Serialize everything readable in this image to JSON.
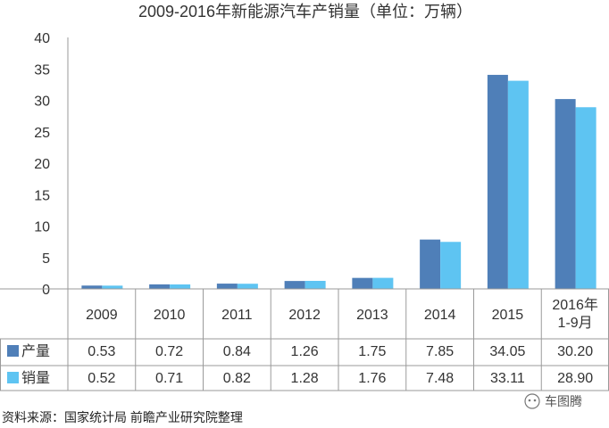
{
  "chart_data": {
    "type": "bar",
    "title": "2009-2016年新能源汽车产销量（单位：万辆）",
    "categories": [
      "2009",
      "2010",
      "2011",
      "2012",
      "2013",
      "2014",
      "2015",
      "2016年\n1-9月"
    ],
    "series": [
      {
        "name": "产量",
        "color": "#4f7fb8",
        "values": [
          0.53,
          0.72,
          0.84,
          1.26,
          1.75,
          7.85,
          34.05,
          30.2
        ],
        "labels": [
          "0.53",
          "0.72",
          "0.84",
          "1.26",
          "1.75",
          "7.85",
          "34.05",
          "30.20"
        ]
      },
      {
        "name": "销量",
        "color": "#5ec4f2",
        "values": [
          0.52,
          0.71,
          0.82,
          1.28,
          1.76,
          7.48,
          33.11,
          28.9
        ],
        "labels": [
          "0.52",
          "0.71",
          "0.82",
          "1.28",
          "1.76",
          "7.48",
          "33.11",
          "28.90"
        ]
      }
    ],
    "ylim": [
      0,
      40
    ],
    "yticks": [
      0,
      5,
      10,
      15,
      20,
      25,
      30,
      35,
      40
    ],
    "xlabel": "",
    "ylabel": "",
    "grid": false,
    "legend": "data-table-left"
  },
  "source": "资料来源：国家统计局 前瞻产业研究院整理",
  "watermark": "车图腾"
}
